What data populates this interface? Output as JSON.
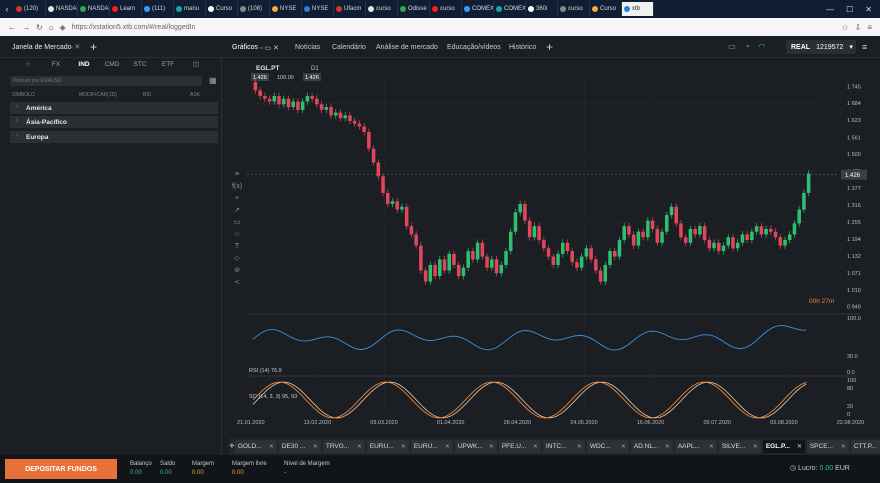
{
  "browser": {
    "tabs": [
      "(120)",
      "NASDAQ",
      "NASDAQ",
      "Learn",
      "(111)",
      "manu",
      "Curso",
      "(108)",
      "NYSE",
      "NYSE",
      "Ufacm",
      "curso",
      "Odisse",
      "curso",
      "COMEX",
      "COMEX",
      "360i",
      "curso",
      "Curso",
      "xtb"
    ],
    "active_tab_index": 19,
    "url": "https://xstation5.xtb.com/#/real/loggedIn"
  },
  "market_watch": {
    "title": "Janela de Mercado",
    "categories": [
      "FX",
      "IND",
      "CMD",
      "STC",
      "ETF"
    ],
    "selected": "IND",
    "search_placeholder": "Procure por EURUSD",
    "columns": [
      "SÍMBOLO",
      "MODIFICAR(1D)",
      "BID",
      "ASK"
    ],
    "groups": [
      "América",
      "Ásia-Pacífico",
      "Europa"
    ]
  },
  "top_tabs": [
    "Gráficos",
    "Notícias",
    "Calendário",
    "Análise de mercado",
    "Educação/vídeos",
    "Histórico"
  ],
  "account": {
    "mode": "REAL",
    "number": "1219572"
  },
  "chart_data": {
    "type": "candlestick",
    "symbol": "EGL.PT",
    "timeframe": "D1",
    "bid": "1.426",
    "ask": "1.426",
    "volume": "100.00",
    "countdown": "00h 27m",
    "x_ticks": [
      "21.01.2020",
      "13.02.2020",
      "09.03.2020",
      "01.04.2020",
      "28.04.2020",
      "24.05.2020",
      "16.06.2020",
      "09.07.2020",
      "03.08.2020",
      "22.08.2020"
    ],
    "y_ticks": [
      "1.745",
      "1.684",
      "1.623",
      "1.561",
      "1.500",
      "1.439",
      "1.377",
      "1.316",
      "1.255",
      "1.194",
      "1.132",
      "1.071",
      "1.010",
      "0.949"
    ],
    "last_price": "1.426",
    "closes": [
      1.73,
      1.71,
      1.7,
      1.69,
      1.71,
      1.68,
      1.7,
      1.67,
      1.69,
      1.66,
      1.69,
      1.71,
      1.7,
      1.68,
      1.66,
      1.67,
      1.64,
      1.65,
      1.63,
      1.64,
      1.62,
      1.61,
      1.6,
      1.58,
      1.52,
      1.47,
      1.42,
      1.36,
      1.32,
      1.33,
      1.3,
      1.31,
      1.24,
      1.21,
      1.17,
      1.08,
      1.04,
      1.1,
      1.06,
      1.12,
      1.08,
      1.14,
      1.1,
      1.06,
      1.09,
      1.15,
      1.12,
      1.18,
      1.13,
      1.09,
      1.12,
      1.07,
      1.1,
      1.15,
      1.22,
      1.29,
      1.32,
      1.26,
      1.2,
      1.24,
      1.19,
      1.16,
      1.13,
      1.1,
      1.14,
      1.18,
      1.15,
      1.11,
      1.09,
      1.13,
      1.16,
      1.12,
      1.08,
      1.04,
      1.1,
      1.15,
      1.13,
      1.19,
      1.24,
      1.21,
      1.17,
      1.22,
      1.2,
      1.26,
      1.23,
      1.18,
      1.22,
      1.28,
      1.31,
      1.25,
      1.2,
      1.18,
      1.23,
      1.21,
      1.24,
      1.19,
      1.16,
      1.18,
      1.15,
      1.17,
      1.2,
      1.16,
      1.18,
      1.21,
      1.19,
      1.22,
      1.24,
      1.21,
      1.23,
      1.22,
      1.2,
      1.17,
      1.19,
      1.21,
      1.25,
      1.3,
      1.36,
      1.43
    ],
    "rsi": {
      "label": "RSI (14) 76.9",
      "levels": [
        "100.0",
        "30.0",
        "0.0"
      ]
    },
    "so": {
      "label": "SO (14, 3, 3) 95, 93",
      "levels": [
        "100",
        "80",
        "20",
        "0"
      ]
    },
    "colors": {
      "up": "#2fbf71",
      "down": "#e2465a",
      "rsi": "#3b8fe0",
      "so_k": "#e8853a",
      "so_d": "#f0c8a0"
    }
  },
  "bottom_tabs": [
    "GOLD...",
    "DE30 ...",
    "TRVG...",
    "EURU...",
    "EURU...",
    "UPWK...",
    "PFE.U...",
    "INTC...",
    "WDC...",
    "AD.NL...",
    "AAPL...",
    "SILVE...",
    "EGL.P...",
    "SPCE...",
    "CTT.P..."
  ],
  "active_bottom_tab": 12,
  "footer": {
    "deposit": "DEPOSITAR FUNDOS",
    "fields": [
      {
        "label": "Balanço",
        "value": "0.00"
      },
      {
        "label": "Saldo",
        "value": "0.00"
      },
      {
        "label": "Margem",
        "value": "0.00"
      },
      {
        "label": "Margem livre",
        "value": "0.00"
      },
      {
        "label": "Nível de Margem",
        "value": "-"
      }
    ],
    "profit_label": "Lucro:",
    "profit": "0.00",
    "currency": "EUR"
  }
}
